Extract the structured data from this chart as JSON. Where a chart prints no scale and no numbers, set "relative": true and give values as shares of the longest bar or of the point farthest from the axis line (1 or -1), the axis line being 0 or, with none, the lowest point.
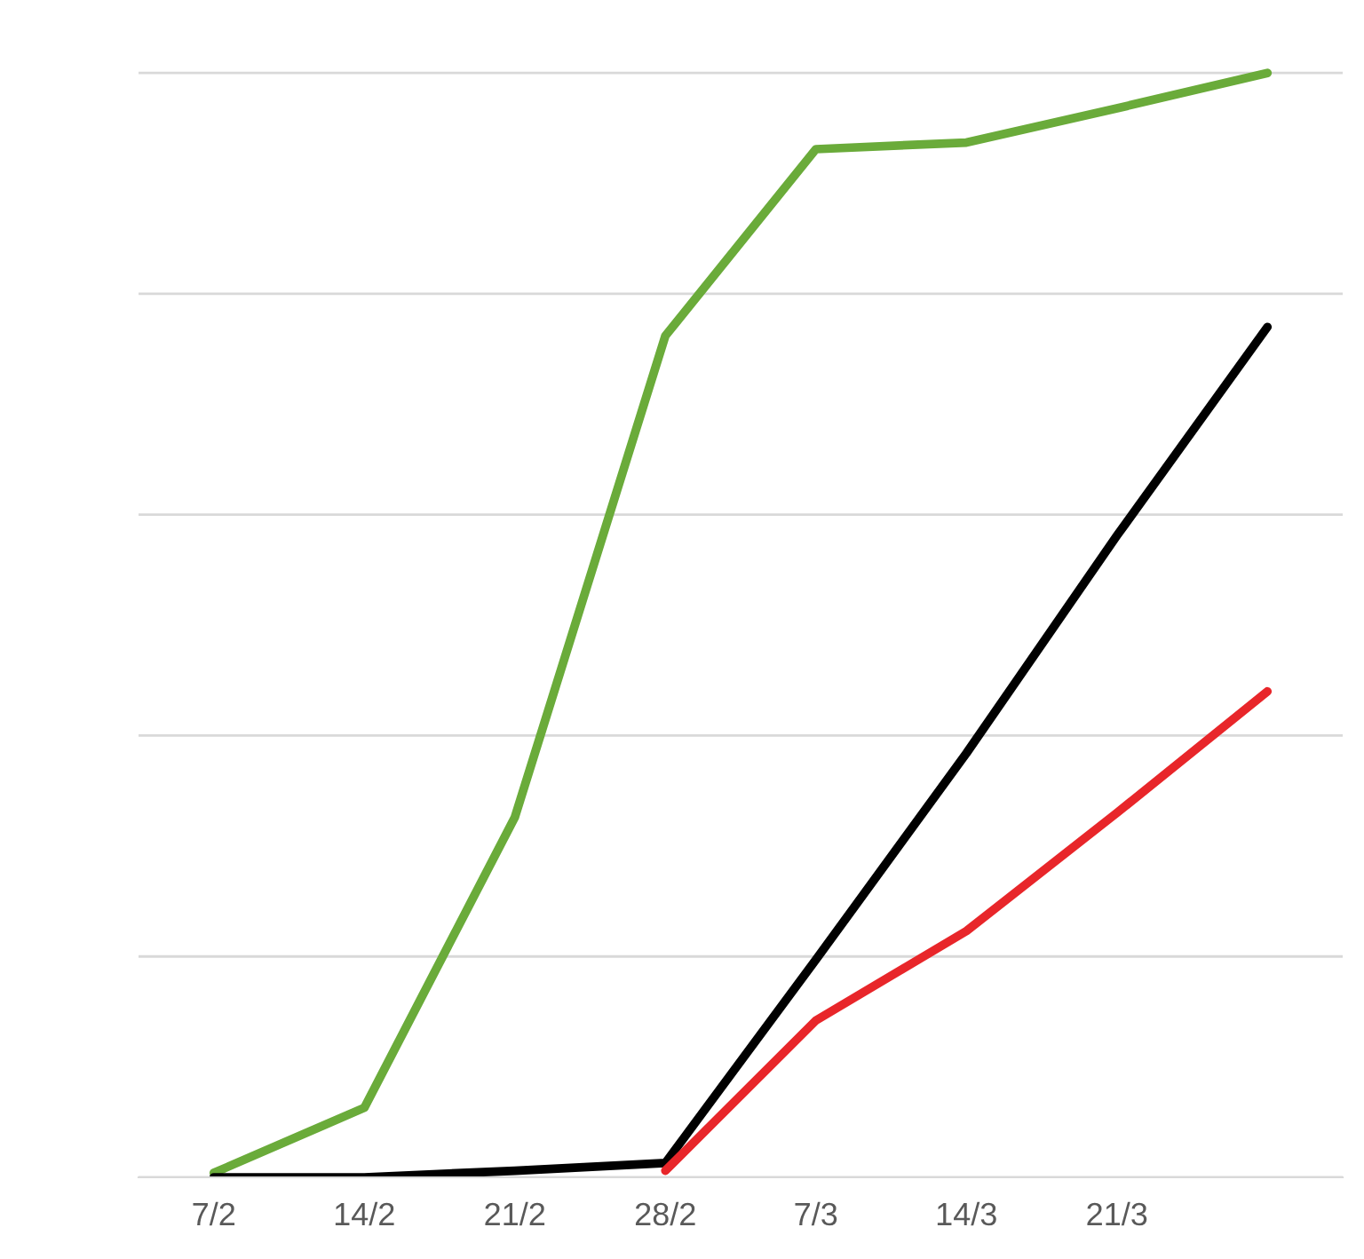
{
  "chart_data": {
    "type": "line",
    "relative": true,
    "grid": "y",
    "line_style": "solid",
    "marker": "none",
    "categories": [
      "7/2",
      "14/2",
      "21/2",
      "28/2",
      "7/3",
      "14/3",
      "21/3",
      null
    ],
    "series": [
      {
        "color": "#6aab3a",
        "values": [
          0.004,
          0.063,
          0.326,
          0.762,
          0.931,
          0.937,
          0.968,
          1.0
        ]
      },
      {
        "color": "#000000",
        "values": [
          0,
          0,
          0.006,
          0.013,
          0.197,
          0.384,
          0.581,
          0.77
        ]
      },
      {
        "color": "#e8262a",
        "values": [
          null,
          null,
          null,
          0.006,
          0.142,
          0.223,
          0.33,
          0.44
        ]
      }
    ]
  }
}
